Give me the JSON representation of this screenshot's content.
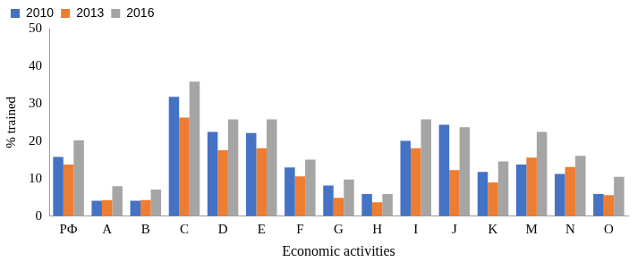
{
  "chart_data": {
    "type": "bar",
    "x_label": "Economic activities",
    "y_label": "% trained",
    "categories": [
      "РФ",
      "A",
      "B",
      "C",
      "D",
      "E",
      "F",
      "G",
      "H",
      "I",
      "J",
      "K",
      "M",
      "N",
      "O"
    ],
    "series": [
      {
        "name": "2010",
        "color": "#4472c4",
        "values": [
          15.8,
          4.1,
          4.1,
          31.8,
          22.5,
          22.2,
          13.0,
          8.2,
          5.9,
          20.1,
          24.4,
          11.8,
          13.8,
          11.3,
          5.9
        ]
      },
      {
        "name": "2013",
        "color": "#ed7d31",
        "values": [
          13.8,
          4.3,
          4.3,
          26.3,
          17.6,
          18.1,
          10.6,
          4.9,
          3.7,
          18.1,
          12.3,
          9.0,
          15.6,
          13.1,
          5.6
        ]
      },
      {
        "name": "2016",
        "color": "#a5a5a5",
        "values": [
          20.2,
          8.0,
          7.1,
          35.9,
          25.8,
          25.8,
          15.1,
          9.8,
          5.9,
          25.8,
          23.7,
          14.6,
          22.5,
          16.1,
          10.5
        ]
      }
    ],
    "ylim": [
      0,
      50
    ],
    "yticks": [
      0,
      10,
      20,
      30,
      40,
      50
    ],
    "grid": false,
    "legend": "top-left"
  }
}
